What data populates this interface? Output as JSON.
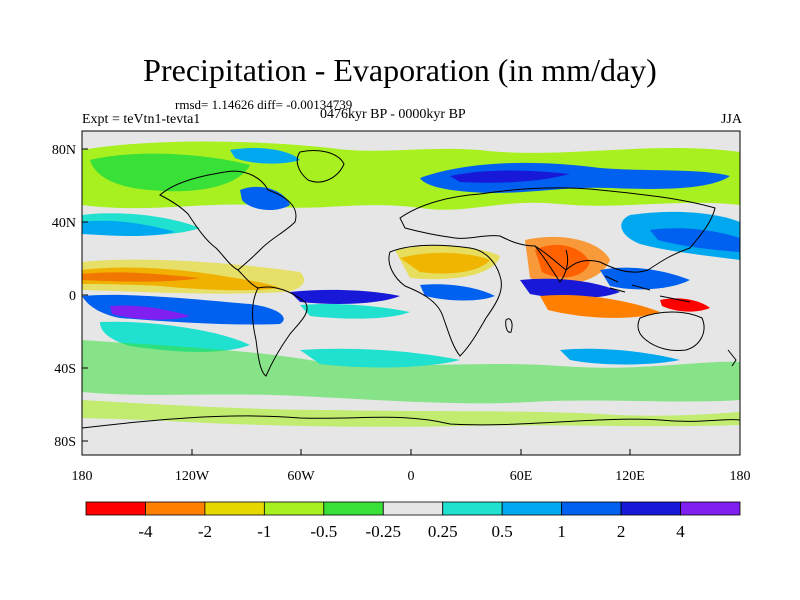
{
  "title": "Precipitation - Evaporation (in mm/day)",
  "stats": "rmsd= 1.14626 diff= -0.00134739",
  "period": "0476kyr BP - 0000kyr BP",
  "experiment": "Expt = teVtn1-tevta1",
  "season": "JJA",
  "chart_data": {
    "type": "heatmap",
    "title": "Precipitation - Evaporation (in mm/day)",
    "xlabel": "",
    "ylabel": "",
    "x_ticks": [
      "180",
      "120W",
      "60W",
      "0",
      "60E",
      "120E",
      "180"
    ],
    "y_ticks": [
      "80N",
      "40N",
      "0",
      "40S",
      "80S"
    ],
    "xlim": [
      -180,
      180
    ],
    "ylim": [
      -90,
      90
    ],
    "colorbar": {
      "levels": [
        "-4",
        "-2",
        "-1",
        "-0.5",
        "-0.25",
        "0.25",
        "0.5",
        "1",
        "2",
        "4"
      ],
      "colors": [
        "#ff0000",
        "#ff8000",
        "#e6d800",
        "#a8f020",
        "#38e038",
        "#e6e6e6",
        "#20e0d0",
        "#00a8f0",
        "#0060f0",
        "#1818d8",
        "#8020f0"
      ]
    }
  },
  "map_features": {
    "background": "#e6e6e6",
    "coastline_color": "#000000",
    "grid": false
  }
}
